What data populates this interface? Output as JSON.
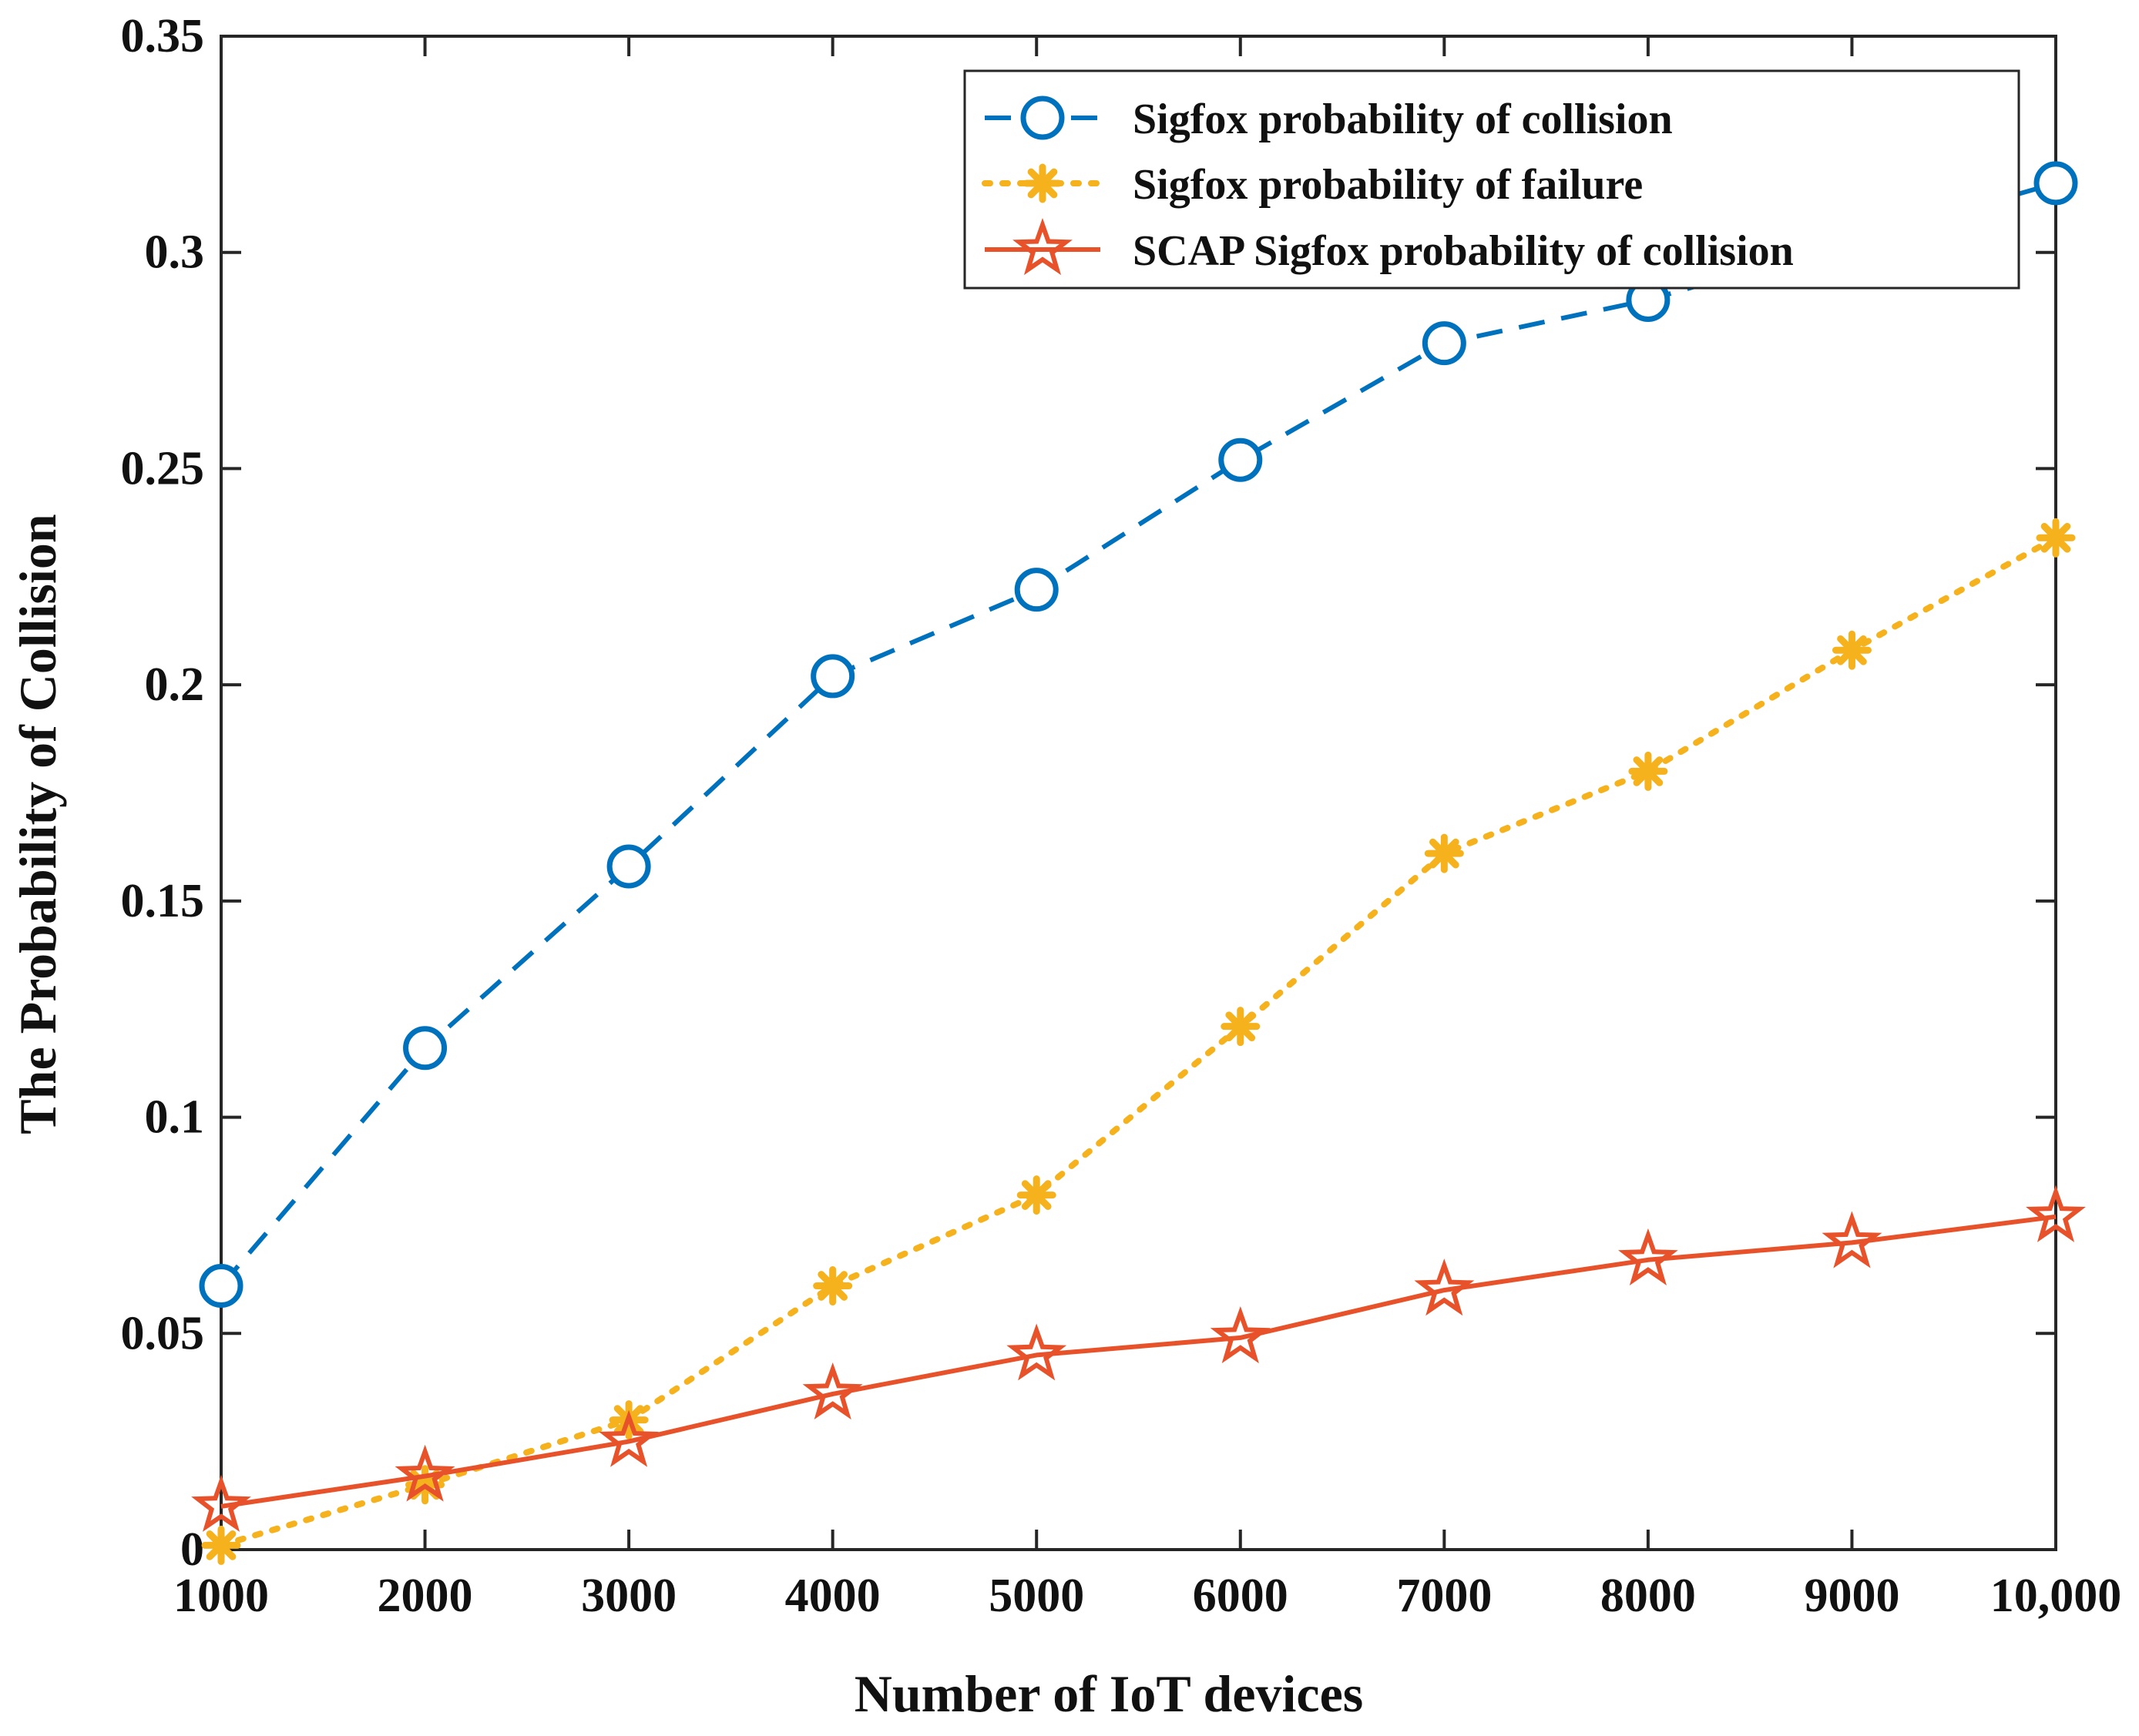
{
  "chart_data": {
    "type": "line",
    "title": "",
    "xlabel": "Number of IoT devices",
    "ylabel": "The Probability of Collision",
    "x": [
      1000,
      2000,
      3000,
      4000,
      5000,
      6000,
      7000,
      8000,
      9000,
      10000
    ],
    "xticks": [
      "1000",
      "2000",
      "3000",
      "4000",
      "5000",
      "6000",
      "7000",
      "8000",
      "9000",
      "10,000"
    ],
    "yticks": [
      "0",
      "0.05",
      "0.1",
      "0.15",
      "0.2",
      "0.25",
      "0.3",
      "0.35"
    ],
    "ytick_values": [
      0,
      0.05,
      0.1,
      0.15,
      0.2,
      0.25,
      0.3,
      0.35
    ],
    "xlim": [
      1000,
      10000
    ],
    "ylim": [
      0,
      0.35
    ],
    "grid": false,
    "legend_position": "top-right",
    "series": [
      {
        "name": "Sigfox probability of collision",
        "color": "#0072BD",
        "line_style": "dashed",
        "marker": "circle",
        "values": [
          0.061,
          0.116,
          0.158,
          0.202,
          0.222,
          0.252,
          0.279,
          0.289,
          null,
          0.316
        ]
      },
      {
        "name": "Sigfox probability of failure",
        "color": "#F5B21D",
        "line_style": "dotted",
        "marker": "asterisk",
        "values": [
          0.001,
          0.015,
          0.03,
          0.061,
          0.082,
          0.121,
          0.161,
          0.18,
          0.208,
          0.234
        ]
      },
      {
        "name": "SCAP Sigfox probability of collision",
        "color": "#E8522A",
        "line_style": "solid",
        "marker": "star",
        "values": [
          0.01,
          0.017,
          0.025,
          0.036,
          0.045,
          0.049,
          0.06,
          0.067,
          0.071,
          0.077
        ]
      }
    ]
  }
}
